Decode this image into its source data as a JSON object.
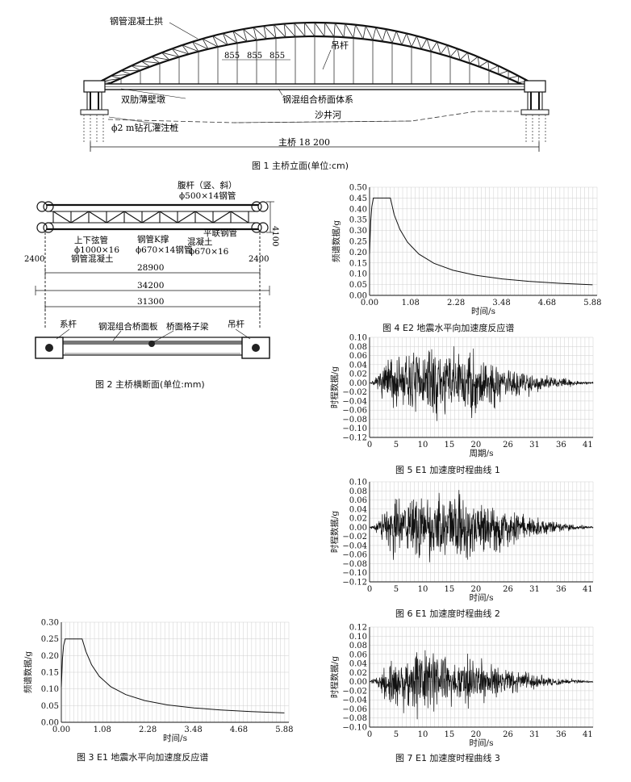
{
  "fig1": {
    "caption": "图 1  主桥立面(单位:cm)",
    "labels": {
      "arch": "钢管混凝土拱",
      "hanger": "吊杆",
      "spacing": [
        "855",
        "855",
        "855"
      ],
      "pier": "双肋薄壁墩",
      "deck": "钢混组合桥面体系",
      "river": "沙井河",
      "pile": "ϕ2 m钻孔灌注桩",
      "span": "主桥 18 200"
    }
  },
  "fig2": {
    "caption": "图 2  主桥横断面(单位:mm)",
    "labels": {
      "web": "腹杆（竖、斜）",
      "web_size": "ϕ500×14钢管",
      "height": "4100",
      "chord": "上下弦管",
      "chord_size": "ϕ1000×16",
      "chord_fill": "钢管混凝土",
      "kbrace": "钢管K撑",
      "kbrace_size": "ϕ670×14钢管",
      "lateral": "平联钢管",
      "lateral_fill": "混凝土",
      "lateral_size": "ϕ670×16",
      "side_left": "2400",
      "side_right": "2400",
      "w1": "28900",
      "w2": "34200",
      "w3": "31300",
      "tie": "系杆",
      "slab": "钢混组合桥面板",
      "grid_beam": "桥面格子梁",
      "hanger": "吊杆"
    }
  },
  "fig3": {
    "caption": "图 3  E1 地震水平向加速度反应谱"
  },
  "fig4": {
    "caption": "图 4  E2 地震水平向加速度反应谱"
  },
  "fig5": {
    "caption": "图 5  E1 加速度时程曲线 1"
  },
  "fig6": {
    "caption": "图 6  E1 加速度时程曲线 2"
  },
  "fig7": {
    "caption": "图 7  E1 加速度时程曲线 3"
  },
  "chart_data": [
    {
      "id": "fig4",
      "type": "line",
      "xlabel": "时间/s",
      "ylabel": "频谱数据/g",
      "xticks": [
        "0.00",
        "1.08",
        "2.28",
        "3.48",
        "4.68",
        "5.88"
      ],
      "xlim": [
        0,
        6.0
      ],
      "yticks": [
        "0.00",
        "0.05",
        "0.10",
        "0.15",
        "0.20",
        "0.25",
        "0.30",
        "0.35",
        "0.40",
        "0.45",
        "0.50"
      ],
      "ylim": [
        0,
        0.5
      ],
      "grid": true,
      "series": [
        {
          "x": [
            0,
            0.03,
            0.06,
            0.1,
            0.15,
            0.3,
            0.45,
            0.55,
            0.65,
            0.8,
            1.0,
            1.3,
            1.7,
            2.2,
            2.8,
            3.5,
            4.2,
            5.0,
            5.88
          ],
          "y": [
            0.19,
            0.34,
            0.41,
            0.45,
            0.45,
            0.45,
            0.45,
            0.45,
            0.373,
            0.305,
            0.246,
            0.191,
            0.148,
            0.116,
            0.093,
            0.076,
            0.065,
            0.056,
            0.049
          ]
        }
      ]
    },
    {
      "id": "fig3",
      "type": "line",
      "xlabel": "时间/s",
      "ylabel": "频谱数据/g",
      "xticks": [
        "0.00",
        "1.08",
        "2.28",
        "3.48",
        "4.68",
        "5.88"
      ],
      "xlim": [
        0,
        6.0
      ],
      "yticks": [
        "0.00",
        "0.05",
        "0.10",
        "0.15",
        "0.20",
        "0.25",
        "0.30"
      ],
      "ylim": [
        0,
        0.3
      ],
      "grid": true,
      "series": [
        {
          "x": [
            0,
            0.03,
            0.06,
            0.1,
            0.15,
            0.3,
            0.45,
            0.55,
            0.65,
            0.8,
            1.0,
            1.3,
            1.7,
            2.2,
            2.8,
            3.5,
            4.2,
            5.0,
            5.88
          ],
          "y": [
            0.105,
            0.19,
            0.23,
            0.25,
            0.25,
            0.25,
            0.25,
            0.25,
            0.212,
            0.172,
            0.138,
            0.107,
            0.083,
            0.065,
            0.052,
            0.043,
            0.037,
            0.032,
            0.028
          ]
        }
      ]
    },
    {
      "id": "fig5",
      "type": "line",
      "xlabel": "周期/s",
      "ylabel": "时程数据/g",
      "xticks": [
        "0",
        "5",
        "10",
        "15",
        "20",
        "26",
        "31",
        "36",
        "41"
      ],
      "xlim": [
        0,
        42
      ],
      "yticks": [
        "−0.12",
        "−0.10",
        "−0.08",
        "−0.06",
        "−0.04",
        "−0.02",
        "0.00",
        "0.02",
        "0.04",
        "0.06",
        "0.08",
        "0.10"
      ],
      "ylim": [
        -0.12,
        0.1
      ],
      "grid": true,
      "envelope": {
        "t": [
          0,
          1,
          2,
          4,
          10,
          18,
          23,
          27,
          32,
          37,
          40,
          42
        ],
        "a": [
          0.002,
          0.008,
          0.03,
          0.075,
          0.085,
          0.09,
          0.07,
          0.04,
          0.022,
          0.01,
          0.004,
          0.002
        ]
      },
      "seed": 7
    },
    {
      "id": "fig6",
      "type": "line",
      "xlabel": "时间/s",
      "ylabel": "时程数据/g",
      "xticks": [
        "0",
        "5",
        "10",
        "15",
        "20",
        "26",
        "31",
        "36",
        "41"
      ],
      "xlim": [
        0,
        42
      ],
      "yticks": [
        "−0.12",
        "−0.10",
        "−0.08",
        "−0.06",
        "−0.04",
        "−0.02",
        "0.00",
        "0.02",
        "0.04",
        "0.06",
        "0.08",
        "0.10"
      ],
      "ylim": [
        -0.12,
        0.1
      ],
      "grid": true,
      "envelope": {
        "t": [
          0,
          1,
          2,
          4,
          10,
          17,
          22,
          26,
          30,
          35,
          40,
          42
        ],
        "a": [
          0.002,
          0.008,
          0.03,
          0.07,
          0.085,
          0.09,
          0.075,
          0.05,
          0.03,
          0.015,
          0.005,
          0.002
        ]
      },
      "seed": 19
    },
    {
      "id": "fig7",
      "type": "line",
      "xlabel": "时间/s",
      "ylabel": "时程数据/g",
      "xticks": [
        "0",
        "5",
        "10",
        "15",
        "20",
        "26",
        "31",
        "36",
        "41"
      ],
      "xlim": [
        0,
        42
      ],
      "yticks": [
        "−0.10",
        "−0.08",
        "−0.06",
        "−0.04",
        "−0.02",
        "0.00",
        "0.02",
        "0.04",
        "0.06",
        "0.08",
        "0.10",
        "0.12"
      ],
      "ylim": [
        -0.1,
        0.12
      ],
      "grid": true,
      "envelope": {
        "t": [
          0,
          1,
          2,
          4,
          9,
          14,
          20,
          26,
          30,
          35,
          40,
          42
        ],
        "a": [
          0.002,
          0.008,
          0.028,
          0.065,
          0.09,
          0.08,
          0.06,
          0.035,
          0.02,
          0.01,
          0.004,
          0.002
        ]
      },
      "seed": 31
    }
  ]
}
